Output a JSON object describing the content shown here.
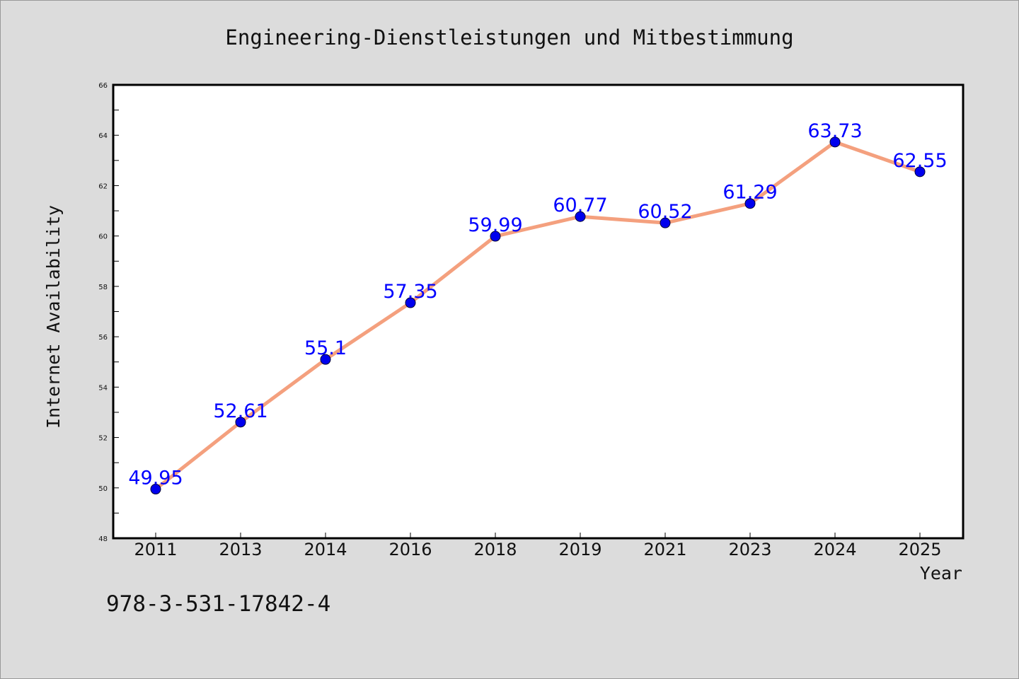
{
  "colors": {
    "background": "#dcdcdc",
    "plot_background": "#ffffff",
    "line": "#f4a07e",
    "marker": "#0000ee",
    "data_label": "#0000ff",
    "text": "#111111"
  },
  "footer_text": "978-3-531-17842-4",
  "chart_data": {
    "type": "line",
    "title": "Engineering-Dienstleistungen und Mitbestimmung",
    "xlabel": "Year",
    "ylabel": "Internet Availability",
    "categories": [
      "2011",
      "2013",
      "2014",
      "2016",
      "2018",
      "2019",
      "2021",
      "2023",
      "2024",
      "2025"
    ],
    "values": [
      49.95,
      52.61,
      55.1,
      57.35,
      59.99,
      60.77,
      60.52,
      61.29,
      63.73,
      62.55
    ],
    "data_labels": [
      "49.95",
      "52.61",
      "55.1",
      "57.35",
      "59.99",
      "60.77",
      "60.52",
      "61.29",
      "63.73",
      "62.55"
    ],
    "ylim": [
      48,
      66
    ],
    "yticks": [
      48,
      50,
      52,
      54,
      56,
      58,
      60,
      62,
      64,
      66
    ],
    "ytick_labels": [
      "48",
      "50",
      "52",
      "54",
      "56",
      "58",
      "60",
      "62",
      "64",
      "66"
    ],
    "grid": false,
    "legend": "none"
  }
}
